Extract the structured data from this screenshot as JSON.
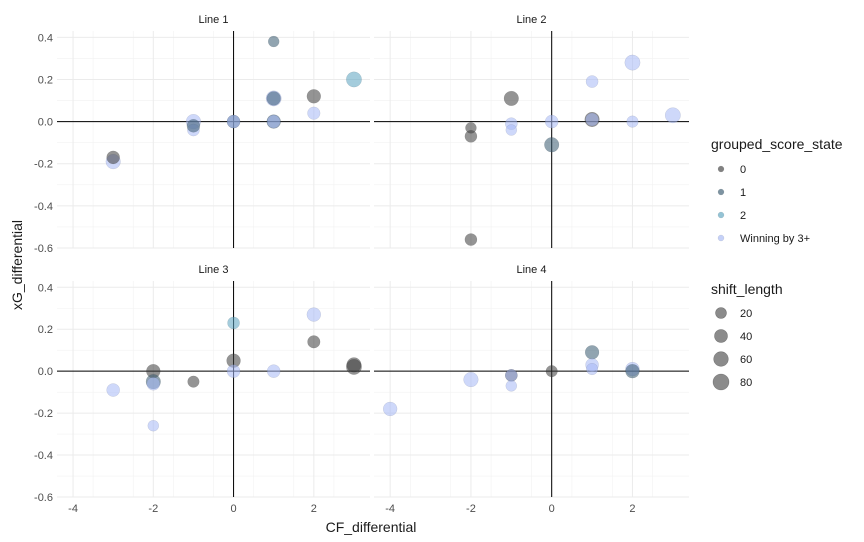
{
  "chart_data": {
    "type": "scatter",
    "xlabel": "CF_differential",
    "ylabel": "xG_differential",
    "xlim": [
      -4.4,
      3.4
    ],
    "ylim": [
      -0.6,
      0.43
    ],
    "x_ticks": [
      -4,
      -2,
      0,
      2
    ],
    "x_tick_labels": [
      "-4",
      "-2",
      "0",
      "2"
    ],
    "y_ticks": [
      -0.6,
      -0.4,
      -0.2,
      0.0,
      0.2,
      0.4
    ],
    "y_tick_labels": [
      "-0.6",
      "-0.4",
      "-0.2",
      "0.0",
      "0.2",
      "0.4"
    ],
    "grid": true,
    "color_legend": {
      "title": "grouped_score_state",
      "entries": [
        {
          "label": "0",
          "color": "#3d3d3d"
        },
        {
          "label": "1",
          "color": "#37596f"
        },
        {
          "label": "2",
          "color": "#5aa3bf"
        },
        {
          "label": "Winning by 3+",
          "color": "#a6b8f5"
        }
      ]
    },
    "size_legend": {
      "title": "shift_length",
      "entries": [
        {
          "label": "20",
          "value": 20
        },
        {
          "label": "40",
          "value": 40
        },
        {
          "label": "60",
          "value": 60
        },
        {
          "label": "80",
          "value": 80
        }
      ]
    },
    "panels": [
      {
        "title": "Line 1",
        "points": [
          {
            "x": -3,
            "y": -0.19,
            "group": "Winning by 3+",
            "size": 60
          },
          {
            "x": -3,
            "y": -0.17,
            "group": "0",
            "size": 40
          },
          {
            "x": -1,
            "y": 0.0,
            "group": "Winning by 3+",
            "size": 60
          },
          {
            "x": -1,
            "y": -0.04,
            "group": "Winning by 3+",
            "size": 30
          },
          {
            "x": -1,
            "y": -0.02,
            "group": "1",
            "size": 40
          },
          {
            "x": 0,
            "y": 0.0,
            "group": "1",
            "size": 40
          },
          {
            "x": 0,
            "y": 0.0,
            "group": "Winning by 3+",
            "size": 40
          },
          {
            "x": 1,
            "y": 0.38,
            "group": "1",
            "size": 20
          },
          {
            "x": 1,
            "y": 0.11,
            "group": "Winning by 3+",
            "size": 70
          },
          {
            "x": 1,
            "y": 0.11,
            "group": "1",
            "size": 50
          },
          {
            "x": 1,
            "y": 0.0,
            "group": "1",
            "size": 50
          },
          {
            "x": 1,
            "y": 0.0,
            "group": "Winning by 3+",
            "size": 40
          },
          {
            "x": 2,
            "y": 0.12,
            "group": "0",
            "size": 50
          },
          {
            "x": 2,
            "y": 0.04,
            "group": "Winning by 3+",
            "size": 35
          },
          {
            "x": 3,
            "y": 0.2,
            "group": "2",
            "size": 70
          }
        ]
      },
      {
        "title": "Line 2",
        "points": [
          {
            "x": -2,
            "y": -0.03,
            "group": "0",
            "size": 20
          },
          {
            "x": -2,
            "y": -0.07,
            "group": "0",
            "size": 30
          },
          {
            "x": -2,
            "y": -0.56,
            "group": "0",
            "size": 30
          },
          {
            "x": -1,
            "y": 0.11,
            "group": "0",
            "size": 60
          },
          {
            "x": -1,
            "y": -0.01,
            "group": "Winning by 3+",
            "size": 30
          },
          {
            "x": -1,
            "y": -0.04,
            "group": "Winning by 3+",
            "size": 20
          },
          {
            "x": 0,
            "y": 0.0,
            "group": "Winning by 3+",
            "size": 40
          },
          {
            "x": 0,
            "y": -0.11,
            "group": "1",
            "size": 60
          },
          {
            "x": 1,
            "y": 0.01,
            "group": "0",
            "size": 60
          },
          {
            "x": 1,
            "y": 0.01,
            "group": "Winning by 3+",
            "size": 40
          },
          {
            "x": 1,
            "y": 0.19,
            "group": "Winning by 3+",
            "size": 30
          },
          {
            "x": 2,
            "y": 0.28,
            "group": "Winning by 3+",
            "size": 70
          },
          {
            "x": 2,
            "y": 0.0,
            "group": "Winning by 3+",
            "size": 25
          },
          {
            "x": 3,
            "y": 0.03,
            "group": "Winning by 3+",
            "size": 70
          }
        ]
      },
      {
        "title": "Line 3",
        "points": [
          {
            "x": -3,
            "y": -0.09,
            "group": "Winning by 3+",
            "size": 40
          },
          {
            "x": -2,
            "y": 0.0,
            "group": "0",
            "size": 50
          },
          {
            "x": -2,
            "y": -0.05,
            "group": "1",
            "size": 60
          },
          {
            "x": -2,
            "y": -0.06,
            "group": "Winning by 3+",
            "size": 40
          },
          {
            "x": -2,
            "y": -0.26,
            "group": "Winning by 3+",
            "size": 20
          },
          {
            "x": -1,
            "y": -0.05,
            "group": "0",
            "size": 25
          },
          {
            "x": 0,
            "y": 0.23,
            "group": "2",
            "size": 30
          },
          {
            "x": 0,
            "y": 0.05,
            "group": "0",
            "size": 50
          },
          {
            "x": 0,
            "y": 0.0,
            "group": "Winning by 3+",
            "size": 40
          },
          {
            "x": 1,
            "y": 0.0,
            "group": "Winning by 3+",
            "size": 40
          },
          {
            "x": 2,
            "y": 0.27,
            "group": "Winning by 3+",
            "size": 50
          },
          {
            "x": 2,
            "y": 0.14,
            "group": "0",
            "size": 35
          },
          {
            "x": 3,
            "y": 0.03,
            "group": "0",
            "size": 60
          },
          {
            "x": 3,
            "y": 0.02,
            "group": "0",
            "size": 70
          }
        ]
      },
      {
        "title": "Line 4",
        "points": [
          {
            "x": -4,
            "y": -0.18,
            "group": "Winning by 3+",
            "size": 50
          },
          {
            "x": -2,
            "y": -0.04,
            "group": "Winning by 3+",
            "size": 60
          },
          {
            "x": -1,
            "y": -0.02,
            "group": "0",
            "size": 30
          },
          {
            "x": -1,
            "y": -0.02,
            "group": "Winning by 3+",
            "size": 30
          },
          {
            "x": -1,
            "y": -0.07,
            "group": "Winning by 3+",
            "size": 20
          },
          {
            "x": 0,
            "y": 0.0,
            "group": "0",
            "size": 25
          },
          {
            "x": 1,
            "y": 0.09,
            "group": "1",
            "size": 50
          },
          {
            "x": 1,
            "y": 0.03,
            "group": "Winning by 3+",
            "size": 40
          },
          {
            "x": 1,
            "y": 0.01,
            "group": "Winning by 3+",
            "size": 25
          },
          {
            "x": 2,
            "y": 0.01,
            "group": "Winning by 3+",
            "size": 50
          },
          {
            "x": 2,
            "y": 0.0,
            "group": "1",
            "size": 50
          }
        ]
      }
    ]
  }
}
